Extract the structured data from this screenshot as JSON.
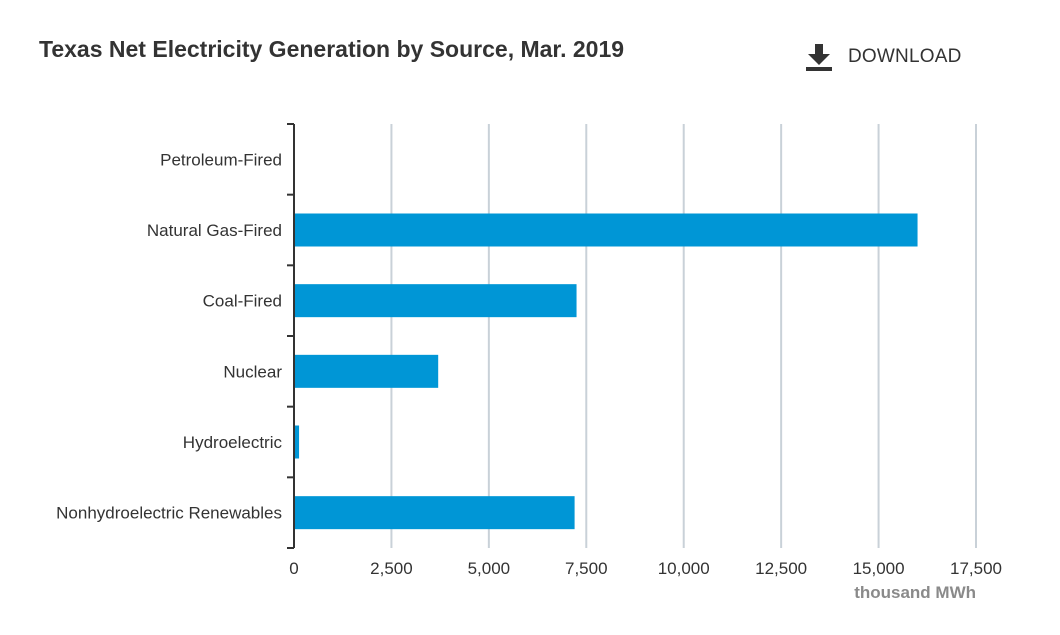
{
  "header": {
    "title": "Texas Net Electricity Generation by Source, Mar. 2019",
    "download_label": "DOWNLOAD",
    "download_icon": "download-icon"
  },
  "chart_data": {
    "type": "bar",
    "orientation": "horizontal",
    "title": "Texas Net Electricity Generation by Source, Mar. 2019",
    "categories": [
      "Petroleum-Fired",
      "Natural Gas-Fired",
      "Coal-Fired",
      "Nuclear",
      "Hydroelectric",
      "Nonhydroelectric Renewables"
    ],
    "values": [
      0,
      16000,
      7250,
      3700,
      130,
      7200
    ],
    "xlim": [
      0,
      17500
    ],
    "xticks": [
      0,
      2500,
      5000,
      7500,
      10000,
      12500,
      15000,
      17500
    ],
    "xtick_labels": [
      "0",
      "2,500",
      "5,000",
      "7,500",
      "10,000",
      "12,500",
      "15,000",
      "17,500"
    ],
    "xlabel": "thousand MWh",
    "ylabel": "",
    "grid": "vertical",
    "legend": "none",
    "bar_color": "#0096d6",
    "grid_color": "#c9d1d8",
    "axis_color": "#333333"
  }
}
